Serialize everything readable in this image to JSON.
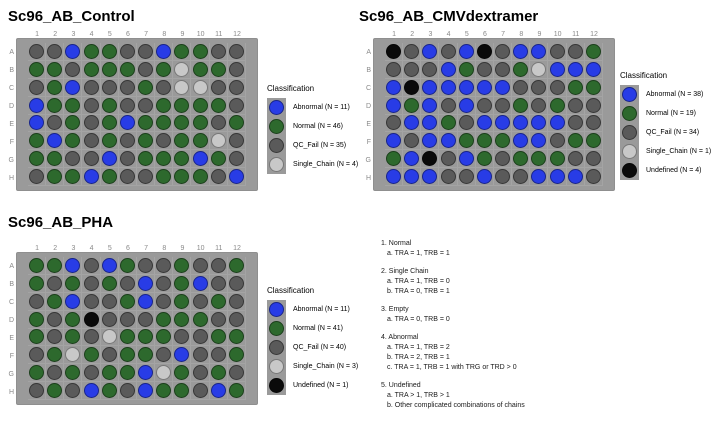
{
  "legend_title": "Classification",
  "colors": {
    "Abnormal": "#283ce6",
    "Normal": "#2d692d",
    "QC_Fail": "#5a5a5a",
    "Single_Chain": "#c8c8c8",
    "Undefined": "#0a0a0a",
    "plate_background": "#9a9a9a",
    "axis_label_gray": "#8a8a8a"
  },
  "chart_data": [
    {
      "type": "heatmap",
      "title": "Sc96_AB_Control",
      "x_labels": [
        "1",
        "2",
        "3",
        "4",
        "5",
        "6",
        "7",
        "8",
        "9",
        "10",
        "11",
        "12"
      ],
      "y_labels": [
        "A",
        "B",
        "C",
        "D",
        "E",
        "F",
        "G",
        "H"
      ],
      "code_map": {
        "B": "Abnormal",
        "G": "Normal",
        "D": "QC_Fail",
        "L": "Single_Chain",
        "K": "Undefined"
      },
      "wells": [
        "DDBGGDDBGGDD",
        "GGDGGGDGLGGD",
        "DGBDDDGDLLDD",
        "BGGDGDDGGGGD",
        "BDGDGBGGGGDG",
        "GBGDGDGDGGLD",
        "GGDDBDGGGBGD",
        "DGGBGDDGGGDB"
      ],
      "legend": [
        {
          "code": "B",
          "label": "Abnormal (N = 11)"
        },
        {
          "code": "G",
          "label": "Normal (N = 46)"
        },
        {
          "code": "D",
          "label": "QC_Fail (N = 35)"
        },
        {
          "code": "L",
          "label": "Single_Chain (N = 4)"
        }
      ]
    },
    {
      "type": "heatmap",
      "title": "Sc96_AB_CMVdextramer",
      "x_labels": [
        "1",
        "2",
        "3",
        "4",
        "5",
        "6",
        "7",
        "8",
        "9",
        "10",
        "11",
        "12"
      ],
      "y_labels": [
        "A",
        "B",
        "C",
        "D",
        "E",
        "F",
        "G",
        "H"
      ],
      "code_map": {
        "B": "Abnormal",
        "G": "Normal",
        "D": "QC_Fail",
        "L": "Single_Chain",
        "K": "Undefined"
      },
      "wells": [
        "KDBDBKDBBDDG",
        "DDDBGDDGLBBB",
        "BKBBBBBDDDGG",
        "BGBDBDDGDGDD",
        "DBBGDBBBBBDD",
        "BDBBGGGBBDGG",
        "GBKDBGDGGGDD",
        "BBBDDBDDBBBD"
      ],
      "legend": [
        {
          "code": "B",
          "label": "Abnormal (N = 38)"
        },
        {
          "code": "G",
          "label": "Normal (N = 19)"
        },
        {
          "code": "D",
          "label": "QC_Fail (N = 34)"
        },
        {
          "code": "L",
          "label": "Single_Chain (N = 1)"
        },
        {
          "code": "K",
          "label": "Undefined (N = 4)"
        }
      ]
    },
    {
      "type": "heatmap",
      "title": "Sc96_AB_PHA",
      "x_labels": [
        "1",
        "2",
        "3",
        "4",
        "5",
        "6",
        "7",
        "8",
        "9",
        "10",
        "11",
        "12"
      ],
      "y_labels": [
        "A",
        "B",
        "C",
        "D",
        "E",
        "F",
        "G",
        "H"
      ],
      "code_map": {
        "B": "Abnormal",
        "G": "Normal",
        "D": "QC_Fail",
        "L": "Single_Chain",
        "K": "Undefined"
      },
      "wells": [
        "GGBDBGDDGDDG",
        "GDGDGDBDGBDD",
        "DGBDDGBDGDGD",
        "GDGKDDDGGGDD",
        "GDGDLGGGDDGG",
        "DGLGDGGDBDDG",
        "GDGDGGBLGDGD",
        "DGDBGDBGGDBG"
      ],
      "legend": [
        {
          "code": "B",
          "label": "Abnormal (N = 11)"
        },
        {
          "code": "G",
          "label": "Normal (N = 41)"
        },
        {
          "code": "D",
          "label": "QC_Fail (N = 40)"
        },
        {
          "code": "L",
          "label": "Single_Chain (N = 3)"
        },
        {
          "code": "K",
          "label": "Undefined (N = 1)"
        }
      ]
    }
  ],
  "notes": [
    {
      "title": "1. Normal",
      "items": [
        "a. TRA = 1, TRB = 1"
      ]
    },
    {
      "title": "2. Single Chain",
      "items": [
        "a. TRA = 1, TRB = 0",
        "b. TRA = 0, TRB = 1"
      ]
    },
    {
      "title": "3. Empty",
      "items": [
        "a. TRA = 0, TRB = 0"
      ]
    },
    {
      "title": "4. Abnormal",
      "items": [
        "a. TRA = 1, TRB = 2",
        "b. TRA = 2, TRB = 1",
        "c. TRA = 1, TRB = 1 with TRG or TRD > 0"
      ]
    },
    {
      "title": "5. Undefined",
      "items": [
        "a. TRA > 1, TRB > 1",
        "b. Other complicated combinations of chains"
      ]
    }
  ]
}
